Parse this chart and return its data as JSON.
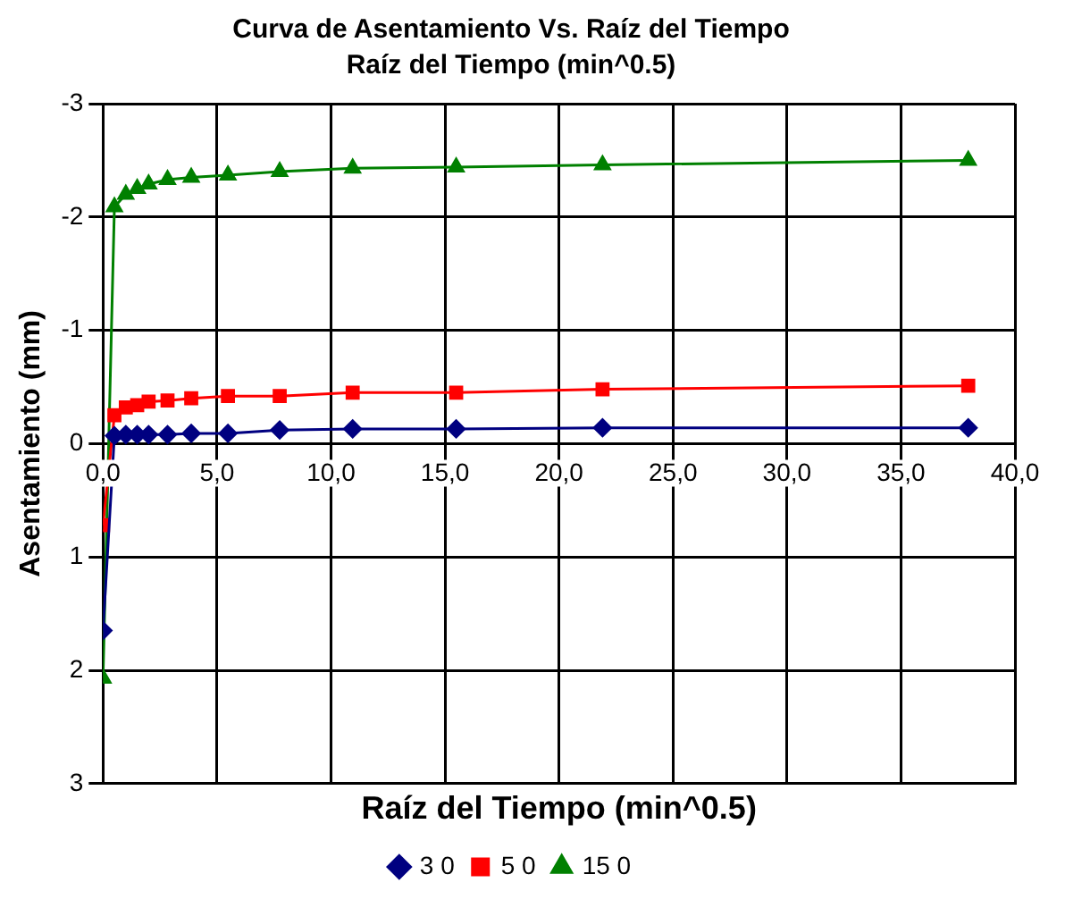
{
  "chart_data": {
    "type": "line",
    "title": "Curva de Asentamiento Vs. Raíz del Tiempo",
    "subtitle": "Raíz del Tiempo (min^0.5)",
    "xlabel": "Raíz del Tiempo (min^0.5)",
    "ylabel": "Asentamiento (mm)",
    "x": [
      0,
      0.5,
      1,
      1.5,
      2,
      2.83,
      3.87,
      5.48,
      7.75,
      10.95,
      15.49,
      21.91,
      37.95
    ],
    "series": [
      {
        "name": "3 0",
        "color": "#000080",
        "marker": "diamond",
        "values": [
          1.65,
          -0.07,
          -0.08,
          -0.08,
          -0.08,
          -0.08,
          -0.09,
          -0.09,
          -0.12,
          -0.13,
          -0.13,
          -0.14,
          -0.14
        ]
      },
      {
        "name": "5 0",
        "color": "#ff0000",
        "marker": "square",
        "values": [
          0.72,
          -0.25,
          -0.32,
          -0.34,
          -0.37,
          -0.38,
          -0.4,
          -0.42,
          -0.42,
          -0.45,
          -0.45,
          -0.48,
          -0.51
        ]
      },
      {
        "name": "15 0",
        "color": "#008000",
        "marker": "triangle",
        "values": [
          2.07,
          -2.09,
          -2.2,
          -2.25,
          -2.29,
          -2.33,
          -2.35,
          -2.37,
          -2.4,
          -2.43,
          -2.44,
          -2.46,
          -2.5
        ]
      }
    ],
    "xlim": [
      0,
      40
    ],
    "xticks": [
      {
        "value": 0,
        "label": "0,0"
      },
      {
        "value": 5,
        "label": "5,0"
      },
      {
        "value": 10,
        "label": "10,0"
      },
      {
        "value": 15,
        "label": "15,0"
      },
      {
        "value": 20,
        "label": "20,0"
      },
      {
        "value": 25,
        "label": "25,0"
      },
      {
        "value": 30,
        "label": "30,0"
      },
      {
        "value": 35,
        "label": "35,0"
      },
      {
        "value": 40,
        "label": "40,0"
      }
    ],
    "ylim": [
      3,
      -3
    ],
    "yticks": [
      -3,
      -2,
      -1,
      0,
      1,
      2,
      3
    ],
    "grid": true,
    "legend": "bottom",
    "line_style": "solid"
  }
}
